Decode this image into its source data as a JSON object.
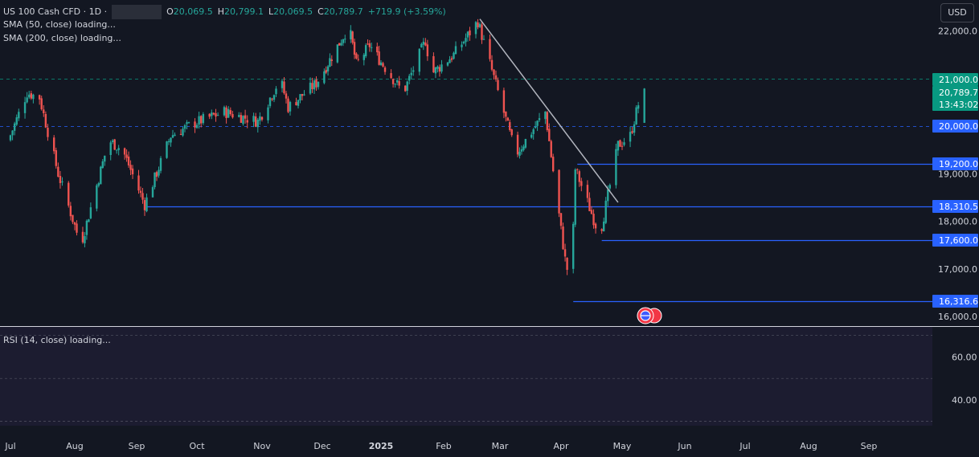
{
  "header": {
    "symbol": "US 100 Cash CFD · 1D ·",
    "open_key": "O",
    "open": "20,069.5",
    "high_key": "H",
    "high": "20,799.1",
    "low_key": "L",
    "low": "20,069.5",
    "close_key": "C",
    "close": "20,789.7",
    "change": "+719.9 (+3.59%)"
  },
  "indicators": {
    "sma50": "SMA (50, close) loading...",
    "sma200": "SMA (200, close) loading...",
    "rsi": "RSI (14, close) loading..."
  },
  "currency_button": "USD",
  "colors": {
    "background": "#131722",
    "up": "#26a69a",
    "down": "#ef5350",
    "hline": "#2962ff",
    "label_blue": "#2962ff",
    "label_green": "#089981",
    "trendline": "#b2b5be"
  },
  "chart_data": {
    "type": "candlestick",
    "title": "US 100 Cash CFD · 1D",
    "price_axis": {
      "ticks": [
        "22,000.0",
        "19,000.0",
        "18,000.0",
        "17,000.0",
        "16,000.0"
      ],
      "ticks_values": [
        22000,
        19000,
        18000,
        17000,
        16000
      ],
      "range": [
        15800,
        22650
      ]
    },
    "time_axis": {
      "labels": [
        "Jul",
        "Aug",
        "Sep",
        "Oct",
        "Nov",
        "Dec",
        "2025",
        "Feb",
        "Mar",
        "Apr",
        "May",
        "Jun",
        "Jul",
        "Aug",
        "Sep"
      ]
    },
    "price_labels": [
      {
        "text": "21,000.0",
        "value": 21000,
        "color": "#089981"
      },
      {
        "text": "20,789.7",
        "value": 20789.7,
        "color": "#089981"
      },
      {
        "text": "13:43:02",
        "color": "#089981"
      },
      {
        "text": "20,000.0",
        "value": 20000,
        "color": "#2962ff"
      },
      {
        "text": "19,200.0",
        "value": 19200,
        "color": "#2962ff"
      },
      {
        "text": "18,310.5",
        "value": 18310.5,
        "color": "#2962ff"
      },
      {
        "text": "17,600.0",
        "value": 17600,
        "color": "#2962ff"
      },
      {
        "text": "16,316.6",
        "value": 16316.6,
        "color": "#2962ff"
      }
    ],
    "horizontal_lines": [
      {
        "value": 21000,
        "style": "dashed",
        "color": "#089981",
        "from": "2024-07-01"
      },
      {
        "value": 20000,
        "style": "dashed",
        "color": "#2962ff",
        "from": "2024-07-01"
      },
      {
        "value": 19200,
        "style": "solid",
        "color": "#2962ff",
        "from": "2025-04-09"
      },
      {
        "value": 18310.5,
        "style": "solid",
        "color": "#2962ff",
        "from": "2024-09-06"
      },
      {
        "value": 17600,
        "style": "solid",
        "color": "#2962ff",
        "from": "2025-04-21"
      },
      {
        "value": 16316.6,
        "style": "solid",
        "color": "#2962ff",
        "from": "2025-04-07"
      }
    ],
    "trendline": {
      "from": {
        "date": "2025-02-19",
        "value": 22250
      },
      "to": {
        "date": "2025-04-29",
        "value": 18400
      }
    },
    "waypoints": [
      {
        "date": "2024-07-01",
        "value": 19700
      },
      {
        "date": "2024-07-10",
        "value": 20700
      },
      {
        "date": "2024-07-16",
        "value": 20600
      },
      {
        "date": "2024-07-25",
        "value": 19000
      },
      {
        "date": "2024-08-05",
        "value": 17500
      },
      {
        "date": "2024-08-19",
        "value": 19700
      },
      {
        "date": "2024-08-26",
        "value": 19500
      },
      {
        "date": "2024-09-06",
        "value": 18350
      },
      {
        "date": "2024-09-19",
        "value": 19800
      },
      {
        "date": "2024-09-30",
        "value": 20050
      },
      {
        "date": "2024-10-15",
        "value": 20300
      },
      {
        "date": "2024-10-31",
        "value": 20100
      },
      {
        "date": "2024-11-11",
        "value": 21000
      },
      {
        "date": "2024-11-15",
        "value": 20400
      },
      {
        "date": "2024-11-29",
        "value": 20900
      },
      {
        "date": "2024-12-16",
        "value": 22100
      },
      {
        "date": "2024-12-20",
        "value": 21300
      },
      {
        "date": "2024-12-27",
        "value": 21700
      },
      {
        "date": "2025-01-13",
        "value": 20700
      },
      {
        "date": "2025-01-24",
        "value": 21800
      },
      {
        "date": "2025-01-27",
        "value": 21100
      },
      {
        "date": "2025-02-07",
        "value": 21500
      },
      {
        "date": "2025-02-19",
        "value": 22200
      },
      {
        "date": "2025-03-10",
        "value": 19400
      },
      {
        "date": "2025-03-20",
        "value": 20000
      },
      {
        "date": "2025-03-25",
        "value": 20300
      },
      {
        "date": "2025-04-04",
        "value": 17200
      },
      {
        "date": "2025-04-07",
        "value": 16600
      },
      {
        "date": "2025-04-09",
        "value": 19100
      },
      {
        "date": "2025-04-21",
        "value": 17700
      },
      {
        "date": "2025-04-30",
        "value": 19600
      },
      {
        "date": "2025-05-06",
        "value": 19800
      },
      {
        "date": "2025-05-12",
        "value": 20789.7
      }
    ],
    "rsi_axis": {
      "ticks": [
        "60.00",
        "40.00"
      ],
      "ticks_values": [
        60,
        40
      ],
      "range": [
        28,
        74
      ]
    }
  }
}
